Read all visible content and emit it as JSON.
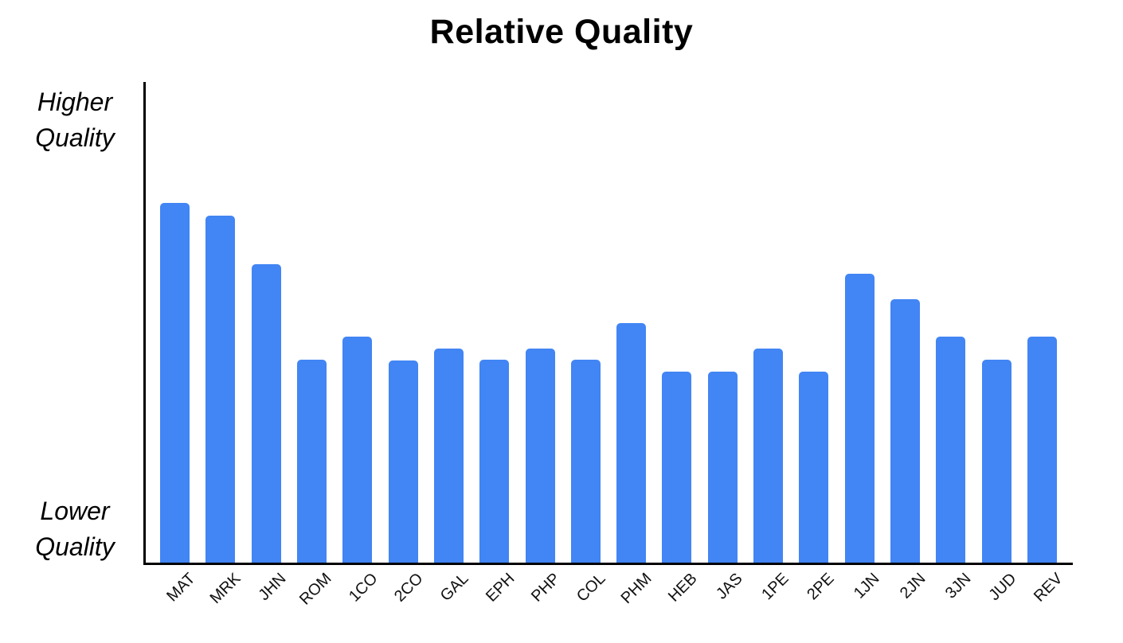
{
  "figure": {
    "title": "Relative Quality",
    "y_axis_top_label": [
      "Higher",
      "Quality"
    ],
    "y_axis_bottom_label": [
      "Lower",
      "Quality"
    ]
  },
  "colors": {
    "bar": "#4285F4",
    "axis": "#000000",
    "text": "#000000",
    "background": "#FFFFFF"
  },
  "chart_data": {
    "type": "bar",
    "title": "Relative Quality",
    "categories": [
      "MAT",
      "MRK",
      "JHN",
      "ROM",
      "1CO",
      "2CO",
      "GAL",
      "EPH",
      "PHP",
      "COL",
      "PHM",
      "HEB",
      "JAS",
      "1PE",
      "2PE",
      "1JN",
      "2JN",
      "3JN",
      "JUD",
      "REV"
    ],
    "values": [
      74.8,
      72.2,
      62.1,
      42.2,
      47.0,
      42.1,
      44.5,
      42.2,
      44.5,
      42.2,
      49.8,
      39.7,
      39.7,
      44.5,
      39.7,
      60.1,
      54.8,
      47.0,
      42.2,
      47.0
    ],
    "xlabel": "",
    "ylabel": "",
    "y_axis_annotations": [
      "Higher Quality",
      "Lower Quality"
    ],
    "ylim": [
      0,
      100
    ],
    "y_tick_labels_shown": false,
    "x_tick_rotation_deg": 45,
    "grid": false,
    "legend": false,
    "bar_color": "#4285F4"
  }
}
